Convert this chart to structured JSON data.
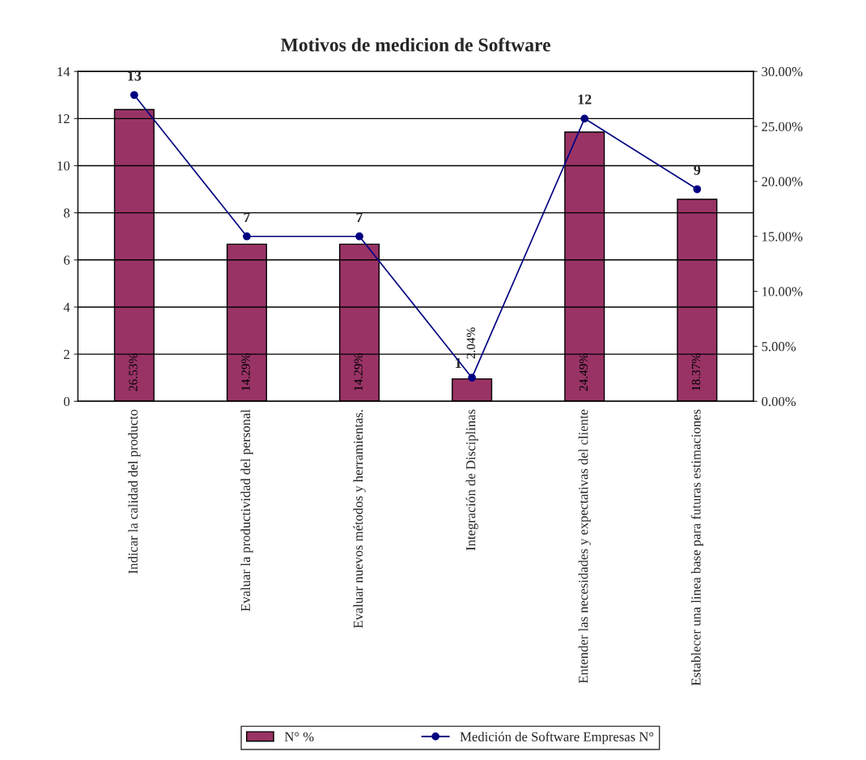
{
  "chart_data": {
    "type": "bar",
    "title": "Motivos de medicion de Software",
    "categories": [
      "Indicar la calidad del producto",
      "Evaluar la productividad del personal",
      "Evaluar nuevos métodos y herramientas.",
      "Integración de Disciplinas",
      "Entender las necesidades y expectativas del cliente",
      "Establecer una linea base para futuras estimaciones"
    ],
    "series": [
      {
        "name": "N° %",
        "axis": "y2",
        "color": "#993366",
        "values": [
          26.53,
          14.29,
          14.29,
          2.04,
          24.49,
          18.37
        ],
        "value_labels": [
          "26.53%",
          "14.29%",
          "14.29%",
          "2.04%",
          "24.49%",
          "18.37%"
        ]
      },
      {
        "name": "Medición de Software Empresas N°",
        "type": "line",
        "axis": "y",
        "color": "#000080",
        "marker": "circle",
        "values": [
          13,
          7,
          7,
          1,
          12,
          9
        ],
        "value_labels": [
          "13",
          "7",
          "7",
          "1",
          "12",
          "9"
        ]
      }
    ],
    "ylim": [
      0,
      14
    ],
    "yticks": [
      0,
      2,
      4,
      6,
      8,
      10,
      12,
      14
    ],
    "y2lim": [
      0,
      30
    ],
    "y2ticks": [
      {
        "value": 0,
        "label": "0.00%"
      },
      {
        "value": 5,
        "label": "5.00%"
      },
      {
        "value": 10,
        "label": "10.00%"
      },
      {
        "value": 15,
        "label": "15.00%"
      },
      {
        "value": 20,
        "label": "20.00%"
      },
      {
        "value": 25,
        "label": "25.00%"
      },
      {
        "value": 30,
        "label": "30.00%"
      }
    ],
    "grid": "y",
    "legend": "bottom"
  }
}
